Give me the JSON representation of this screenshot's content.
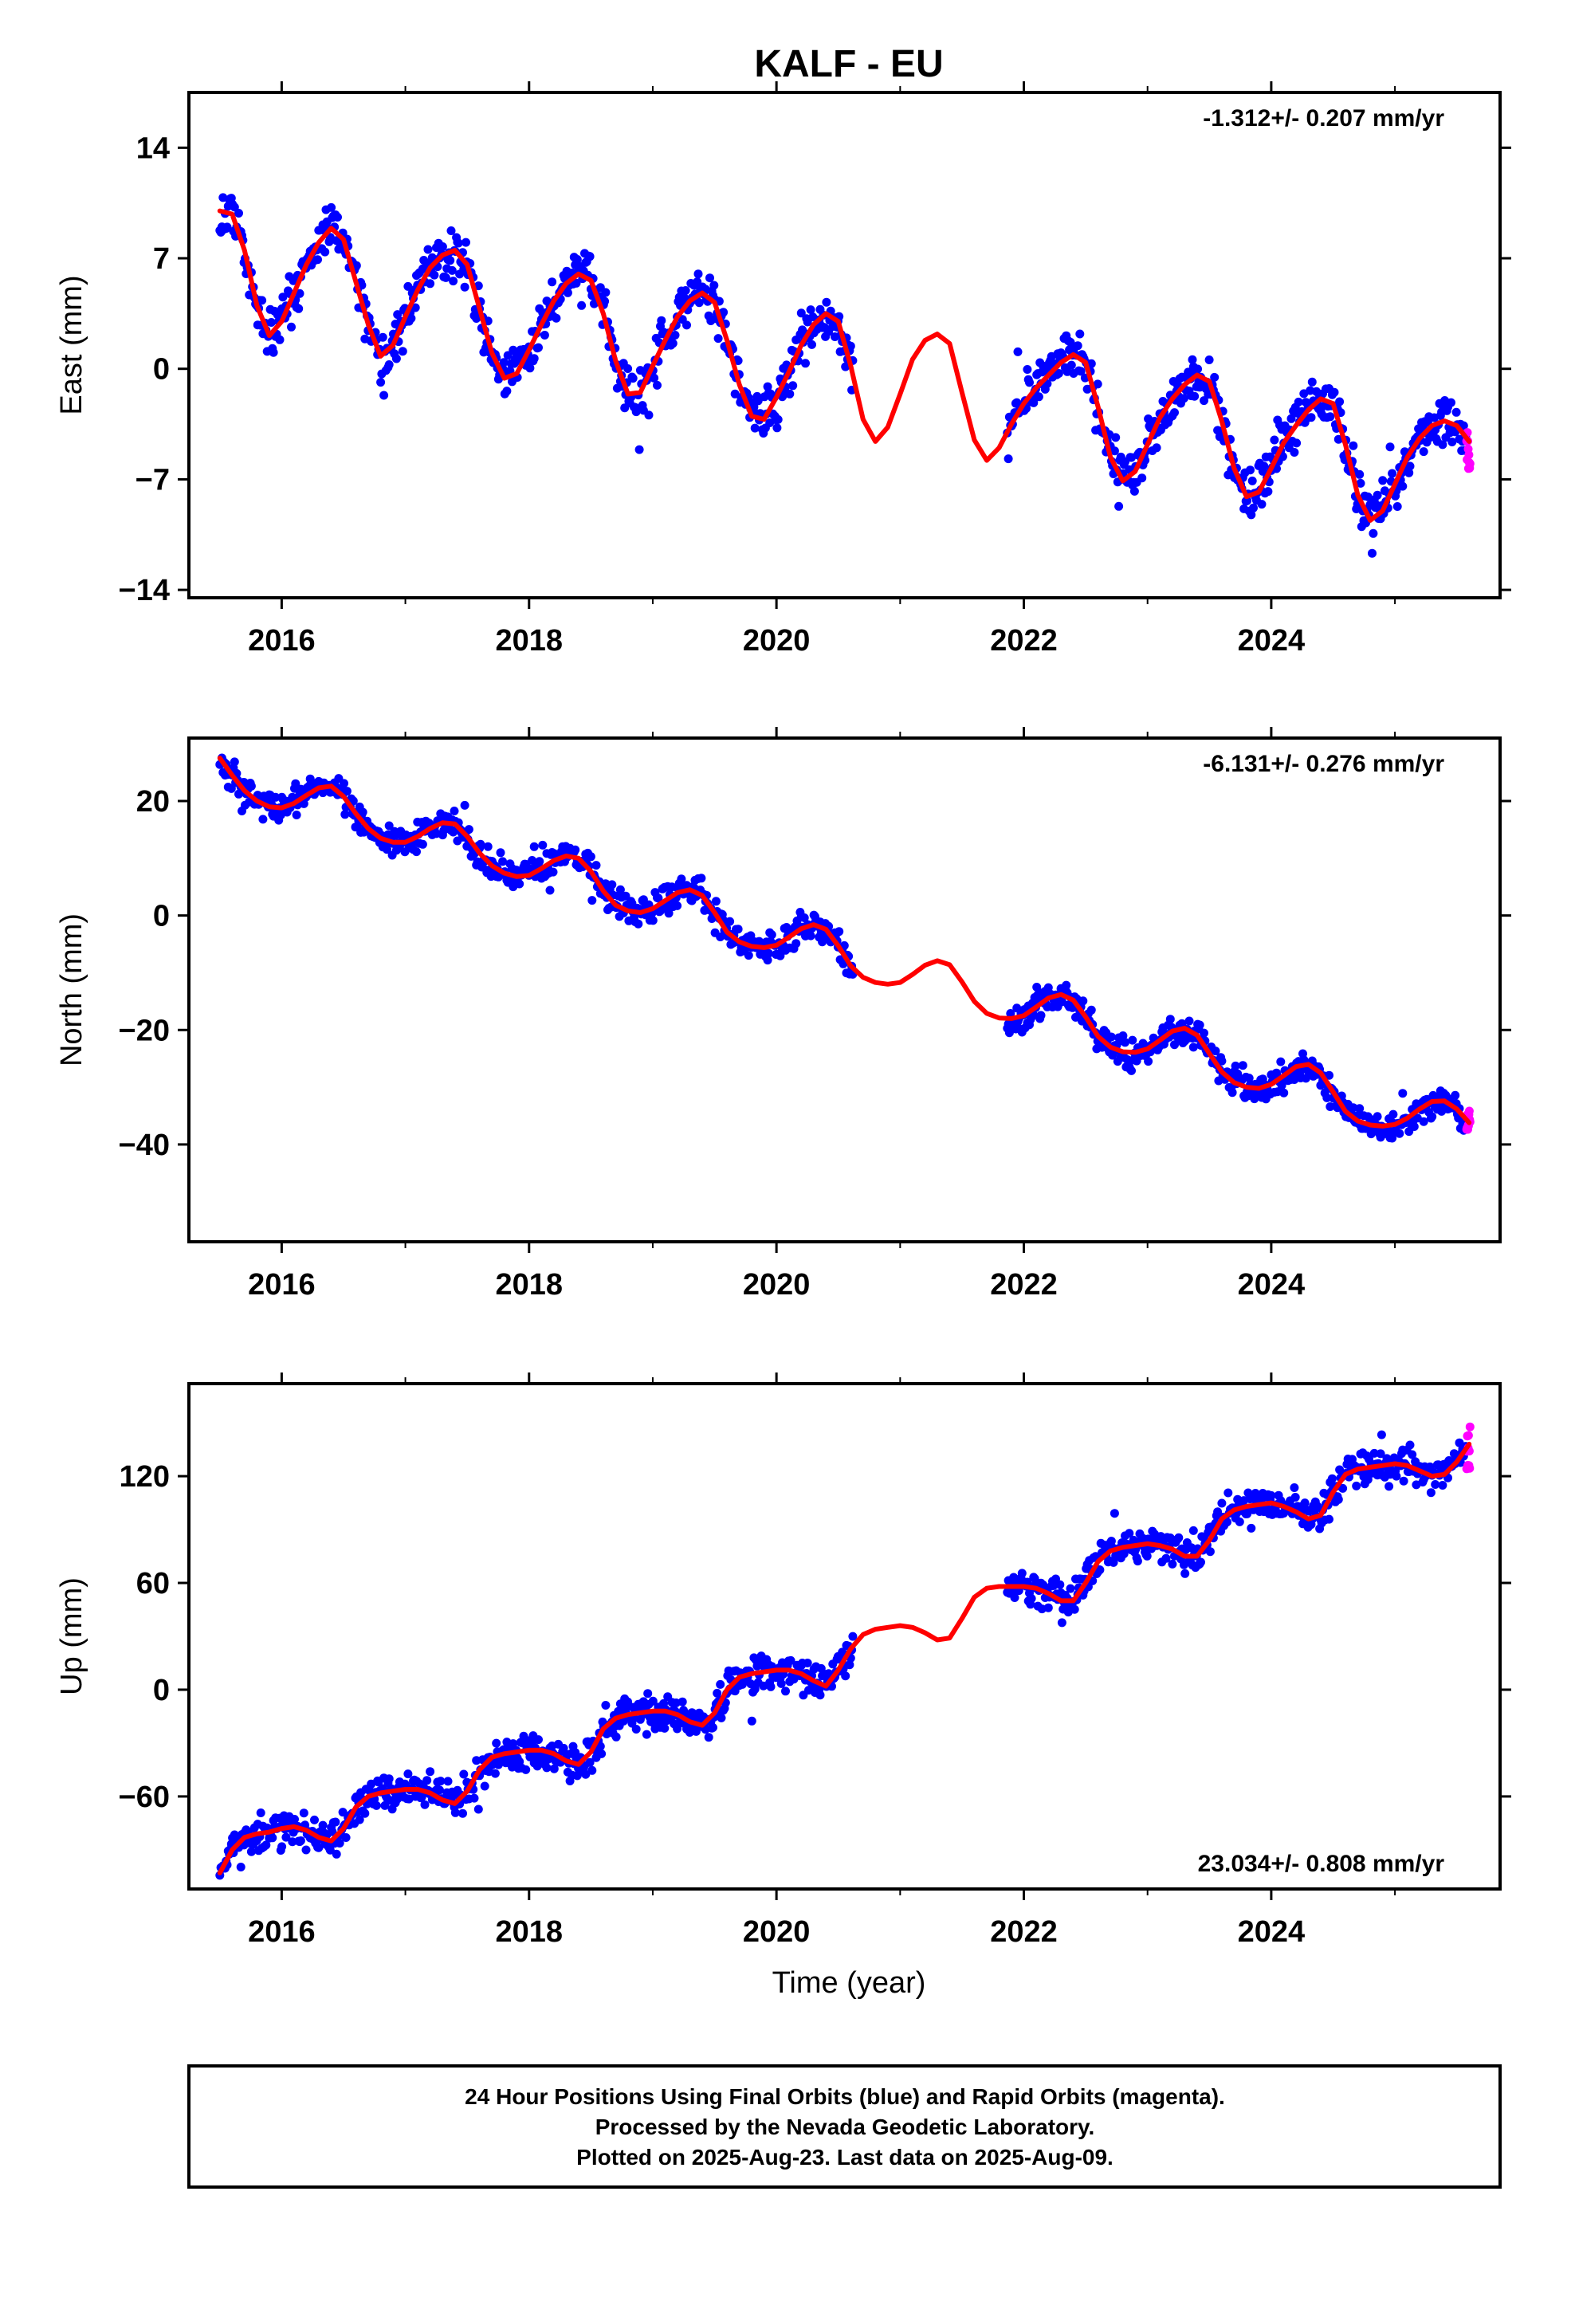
{
  "title": "KALF - EU",
  "footer": {
    "line1": "24 Hour Positions Using Final Orbits (blue) and Rapid Orbits (magenta).",
    "line2": "Processed by the Nevada Geodetic Laboratory.",
    "line3": "Plotted on 2025-Aug-23. Last data on 2025-Aug-09."
  },
  "colors": {
    "final": "#0000ff",
    "rapid": "#ff00ff",
    "model": "#ff0000",
    "axis": "#000000"
  },
  "chart_data": [
    {
      "type": "scatter",
      "name": "east",
      "ylabel": "East (mm)",
      "xlabel": "",
      "rate_label": "-1.312+/- 0.207 mm/yr",
      "rate_position": "top-right",
      "xlim": [
        2015.25,
        2025.85
      ],
      "ylim": [
        -14.5,
        17.5
      ],
      "xticks": [
        2016,
        2018,
        2020,
        2022,
        2024
      ],
      "xtick_labels": [
        "2016",
        "2018",
        "2020",
        "2022",
        "2024"
      ],
      "yticks": [
        14,
        7,
        0,
        -7,
        -14
      ],
      "ytick_labels": [
        "14",
        "7",
        "0",
        "−7",
        "−14"
      ],
      "grid": false,
      "model": {
        "name": "fit",
        "x": [
          2015.5,
          2015.6,
          2015.7,
          2015.8,
          2015.9,
          2016.0,
          2016.1,
          2016.2,
          2016.3,
          2016.4,
          2016.5,
          2016.6,
          2016.7,
          2016.8,
          2016.9,
          2017.0,
          2017.1,
          2017.2,
          2017.3,
          2017.4,
          2017.5,
          2017.6,
          2017.7,
          2017.8,
          2017.9,
          2018.0,
          2018.1,
          2018.2,
          2018.3,
          2018.4,
          2018.5,
          2018.6,
          2018.7,
          2018.8,
          2018.9,
          2019.0,
          2019.1,
          2019.2,
          2019.3,
          2019.4,
          2019.5,
          2019.6,
          2019.7,
          2019.8,
          2019.9,
          2020.0,
          2020.1,
          2020.2,
          2020.3,
          2020.4,
          2020.5,
          2020.6,
          2020.7,
          2020.8,
          2020.9,
          2021.0,
          2021.1,
          2021.2,
          2021.3,
          2021.4,
          2021.5,
          2021.6,
          2021.7,
          2021.8,
          2021.9,
          2022.0,
          2022.1,
          2022.2,
          2022.3,
          2022.4,
          2022.5,
          2022.6,
          2022.7,
          2022.8,
          2022.9,
          2023.0,
          2023.1,
          2023.2,
          2023.3,
          2023.4,
          2023.5,
          2023.6,
          2023.7,
          2023.8,
          2023.9,
          2024.0,
          2024.1,
          2024.2,
          2024.3,
          2024.4,
          2024.5,
          2024.6,
          2024.7,
          2024.8,
          2024.9,
          2025.0,
          2025.1,
          2025.2,
          2025.3,
          2025.4,
          2025.5,
          2025.6
        ],
        "y": [
          10.0,
          9.8,
          7.5,
          4.0,
          2.1,
          3.0,
          4.8,
          6.6,
          8.0,
          8.9,
          8.2,
          5.5,
          2.8,
          0.8,
          1.5,
          3.3,
          5.0,
          6.4,
          7.2,
          7.5,
          6.6,
          3.8,
          1.0,
          -0.6,
          -0.3,
          1.2,
          2.8,
          4.3,
          5.4,
          6.0,
          5.6,
          3.5,
          0.5,
          -1.6,
          -1.5,
          0.2,
          1.8,
          3.3,
          4.3,
          4.8,
          4.2,
          1.8,
          -1.0,
          -3.0,
          -3.2,
          -1.8,
          -0.2,
          1.5,
          2.8,
          3.5,
          3.0,
          0.2,
          -3.2,
          -4.6,
          -3.7,
          -1.6,
          0.6,
          1.8,
          2.2,
          1.6,
          -1.5,
          -4.5,
          -5.8,
          -5.0,
          -3.5,
          -2.2,
          -1.2,
          -0.4,
          0.4,
          0.9,
          0.4,
          -2.4,
          -5.6,
          -7.1,
          -6.5,
          -4.8,
          -3.1,
          -1.9,
          -1.0,
          -0.4,
          -0.8,
          -3.3,
          -6.3,
          -8.1,
          -7.8,
          -6.3,
          -4.7,
          -3.6,
          -2.6,
          -1.9,
          -2.2,
          -4.8,
          -8.0,
          -9.6,
          -9.0,
          -7.3,
          -5.6,
          -4.4,
          -3.6,
          -3.3,
          -3.6,
          -4.6
        ]
      }
    },
    {
      "type": "scatter",
      "name": "north",
      "ylabel": "North (mm)",
      "xlabel": "",
      "rate_label": "-6.131+/- 0.276 mm/yr",
      "rate_position": "top-right",
      "xlim": [
        2015.25,
        2025.85
      ],
      "ylim": [
        -57,
        31
      ],
      "xticks": [
        2016,
        2018,
        2020,
        2022,
        2024
      ],
      "xtick_labels": [
        "2016",
        "2018",
        "2020",
        "2022",
        "2024"
      ],
      "yticks": [
        20,
        0,
        -20,
        -40
      ],
      "ytick_labels": [
        "20",
        "0",
        "−20",
        "−40"
      ],
      "grid": false,
      "model": {
        "name": "fit",
        "x": [
          2015.5,
          2015.6,
          2015.7,
          2015.8,
          2015.9,
          2016.0,
          2016.1,
          2016.2,
          2016.3,
          2016.4,
          2016.5,
          2016.6,
          2016.7,
          2016.8,
          2016.9,
          2017.0,
          2017.1,
          2017.2,
          2017.3,
          2017.4,
          2017.5,
          2017.6,
          2017.7,
          2017.8,
          2017.9,
          2018.0,
          2018.1,
          2018.2,
          2018.3,
          2018.4,
          2018.5,
          2018.6,
          2018.7,
          2018.8,
          2018.9,
          2019.0,
          2019.1,
          2019.2,
          2019.3,
          2019.4,
          2019.5,
          2019.6,
          2019.7,
          2019.8,
          2019.9,
          2020.0,
          2020.1,
          2020.2,
          2020.3,
          2020.4,
          2020.5,
          2020.6,
          2020.7,
          2020.8,
          2020.9,
          2021.0,
          2021.1,
          2021.2,
          2021.3,
          2021.4,
          2021.5,
          2021.6,
          2021.7,
          2021.8,
          2021.9,
          2022.0,
          2022.1,
          2022.2,
          2022.3,
          2022.4,
          2022.5,
          2022.6,
          2022.7,
          2022.8,
          2022.9,
          2023.0,
          2023.1,
          2023.2,
          2023.3,
          2023.4,
          2023.5,
          2023.6,
          2023.7,
          2023.8,
          2023.9,
          2024.0,
          2024.1,
          2024.2,
          2024.3,
          2024.4,
          2024.5,
          2024.6,
          2024.7,
          2024.8,
          2024.9,
          2025.0,
          2025.1,
          2025.2,
          2025.3,
          2025.4,
          2025.5,
          2025.6
        ],
        "y": [
          27.5,
          24.5,
          21.8,
          20.0,
          19.0,
          18.8,
          19.6,
          21.0,
          22.3,
          22.6,
          20.8,
          17.8,
          15.2,
          13.5,
          12.8,
          12.8,
          13.8,
          15.2,
          16.2,
          16.0,
          13.8,
          10.9,
          8.7,
          7.4,
          6.8,
          7.0,
          8.2,
          9.6,
          10.4,
          10.0,
          7.7,
          4.3,
          1.8,
          0.8,
          0.5,
          1.2,
          2.6,
          4.0,
          4.5,
          3.5,
          0.5,
          -2.9,
          -4.6,
          -5.4,
          -5.6,
          -5.2,
          -3.8,
          -2.3,
          -1.6,
          -2.4,
          -5.3,
          -8.8,
          -10.8,
          -11.7,
          -12.0,
          -11.7,
          -10.3,
          -8.7,
          -7.9,
          -8.6,
          -11.6,
          -15.0,
          -17.1,
          -17.9,
          -18.0,
          -17.5,
          -16.0,
          -14.4,
          -13.8,
          -14.8,
          -17.7,
          -21.1,
          -23.0,
          -23.8,
          -23.9,
          -23.3,
          -21.8,
          -20.2,
          -19.7,
          -20.9,
          -24.1,
          -27.3,
          -29.2,
          -30.0,
          -30.2,
          -29.5,
          -28.0,
          -26.4,
          -26.0,
          -27.5,
          -30.8,
          -34.2,
          -35.9,
          -36.6,
          -36.8,
          -36.5,
          -35.4,
          -33.8,
          -32.5,
          -32.4,
          -33.8,
          -36.2
        ]
      }
    },
    {
      "type": "scatter",
      "name": "up",
      "ylabel": "Up (mm)",
      "xlabel": "Time (year)",
      "rate_label": "23.034+/- 0.808 mm/yr",
      "rate_position": "bottom-right",
      "xlim": [
        2015.25,
        2025.85
      ],
      "ylim": [
        -112,
        172
      ],
      "xticks": [
        2016,
        2018,
        2020,
        2022,
        2024
      ],
      "xtick_labels": [
        "2016",
        "2018",
        "2020",
        "2022",
        "2024"
      ],
      "yticks": [
        120,
        60,
        0,
        -60
      ],
      "ytick_labels": [
        "120",
        "60",
        "0",
        "−60"
      ],
      "grid": false,
      "model": {
        "name": "fit",
        "x": [
          2015.5,
          2015.6,
          2015.7,
          2015.8,
          2015.9,
          2016.0,
          2016.1,
          2016.2,
          2016.3,
          2016.4,
          2016.5,
          2016.6,
          2016.7,
          2016.8,
          2016.9,
          2017.0,
          2017.1,
          2017.2,
          2017.3,
          2017.4,
          2017.5,
          2017.6,
          2017.7,
          2017.8,
          2017.9,
          2018.0,
          2018.1,
          2018.2,
          2018.3,
          2018.4,
          2018.5,
          2018.6,
          2018.7,
          2018.8,
          2018.9,
          2019.0,
          2019.1,
          2019.2,
          2019.3,
          2019.4,
          2019.5,
          2019.6,
          2019.7,
          2019.8,
          2019.9,
          2020.0,
          2020.1,
          2020.2,
          2020.3,
          2020.4,
          2020.5,
          2020.6,
          2020.7,
          2020.8,
          2020.9,
          2021.0,
          2021.1,
          2021.2,
          2021.3,
          2021.4,
          2021.5,
          2021.6,
          2021.7,
          2021.8,
          2021.9,
          2022.0,
          2022.1,
          2022.2,
          2022.3,
          2022.4,
          2022.5,
          2022.6,
          2022.7,
          2022.8,
          2022.9,
          2023.0,
          2023.1,
          2023.2,
          2023.3,
          2023.4,
          2023.5,
          2023.6,
          2023.7,
          2023.8,
          2023.9,
          2024.0,
          2024.1,
          2024.2,
          2024.3,
          2024.4,
          2024.5,
          2024.6,
          2024.7,
          2024.8,
          2024.9,
          2025.0,
          2025.1,
          2025.2,
          2025.3,
          2025.4,
          2025.5,
          2025.6
        ],
        "y": [
          -103,
          -90,
          -83,
          -81,
          -80,
          -78,
          -77,
          -79,
          -83,
          -85,
          -78,
          -66,
          -60,
          -58,
          -57,
          -56,
          -56,
          -58,
          -62,
          -64,
          -57,
          -45,
          -38,
          -36,
          -35,
          -34,
          -34,
          -36,
          -40,
          -42,
          -35,
          -22,
          -16,
          -14,
          -13,
          -12,
          -12,
          -14,
          -18,
          -20,
          -13,
          0,
          7,
          9,
          10,
          11,
          11,
          9,
          5,
          2,
          11,
          23,
          31,
          34,
          35,
          36,
          35,
          32,
          28,
          29,
          40,
          52,
          57,
          58,
          58,
          58,
          57,
          54,
          50,
          50,
          60,
          72,
          78,
          80,
          81,
          82,
          81,
          79,
          75,
          75,
          84,
          96,
          101,
          103,
          104,
          105,
          103,
          100,
          96,
          98,
          111,
          121,
          124,
          125,
          126,
          127,
          126,
          123,
          120,
          121,
          128,
          138
        ]
      }
    }
  ]
}
